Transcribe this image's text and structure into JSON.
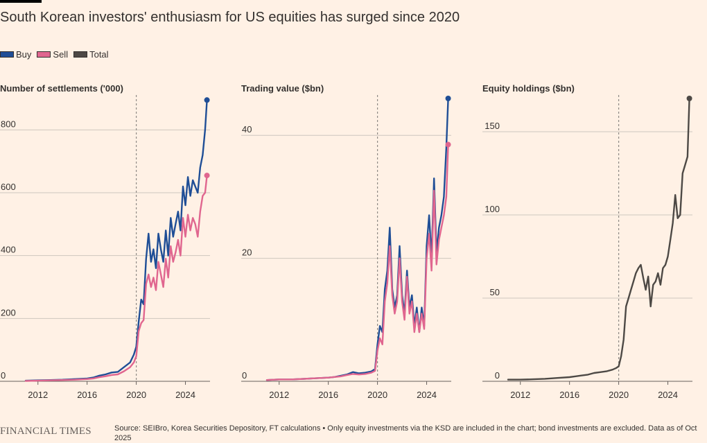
{
  "title": "South Korean investors' enthusiasm for US equities has surged since 2020",
  "colors": {
    "buy": "#1F4E96",
    "sell": "#E0668F",
    "total": "#4D4945",
    "grid": "#CEC6BE",
    "axis": "#66605C",
    "text": "#33302E"
  },
  "legend": [
    {
      "label": "Buy",
      "color": "#1F4E96"
    },
    {
      "label": "Sell",
      "color": "#E0668F"
    },
    {
      "label": "Total",
      "color": "#4D4945"
    }
  ],
  "chart_data": [
    {
      "type": "line",
      "title": "Number of settlements ('000)",
      "xlim": [
        2011.0,
        2026.0
      ],
      "ylim": [
        0,
        900
      ],
      "xticks": [
        2012,
        2016,
        2020,
        2024
      ],
      "yticks": [
        0,
        200,
        400,
        600,
        800
      ],
      "marker_x": 2020,
      "series": [
        {
          "name": "Buy",
          "color": "#1F4E96",
          "x": [
            2011.0,
            2012.0,
            2013.0,
            2014.0,
            2015.0,
            2016.0,
            2016.5,
            2017.0,
            2017.5,
            2018.0,
            2018.5,
            2019.0,
            2019.5,
            2019.8,
            2020.0,
            2020.2,
            2020.4,
            2020.6,
            2020.8,
            2021.0,
            2021.2,
            2021.4,
            2021.6,
            2021.8,
            2022.0,
            2022.2,
            2022.4,
            2022.6,
            2022.8,
            2023.0,
            2023.2,
            2023.4,
            2023.6,
            2023.8,
            2024.0,
            2024.2,
            2024.4,
            2024.6,
            2024.8,
            2025.0,
            2025.2,
            2025.4,
            2025.6,
            2025.75
          ],
          "values": [
            2,
            3,
            4,
            5,
            7,
            9,
            12,
            18,
            22,
            28,
            30,
            45,
            60,
            85,
            110,
            190,
            260,
            245,
            390,
            470,
            380,
            420,
            360,
            470,
            420,
            380,
            480,
            400,
            520,
            460,
            500,
            540,
            480,
            620,
            560,
            650,
            590,
            640,
            620,
            600,
            680,
            720,
            800,
            895
          ]
        },
        {
          "name": "Sell",
          "color": "#E0668F",
          "x": [
            2011.0,
            2012.0,
            2013.0,
            2014.0,
            2015.0,
            2016.0,
            2016.5,
            2017.0,
            2017.5,
            2018.0,
            2018.5,
            2019.0,
            2019.5,
            2019.8,
            2020.0,
            2020.2,
            2020.4,
            2020.6,
            2020.8,
            2021.0,
            2021.2,
            2021.4,
            2021.6,
            2021.8,
            2022.0,
            2022.2,
            2022.4,
            2022.6,
            2022.8,
            2023.0,
            2023.2,
            2023.4,
            2023.6,
            2023.8,
            2024.0,
            2024.2,
            2024.4,
            2024.6,
            2024.8,
            2025.0,
            2025.2,
            2025.4,
            2025.6,
            2025.75
          ],
          "values": [
            1,
            2,
            3,
            4,
            5,
            7,
            9,
            13,
            16,
            20,
            22,
            32,
            45,
            60,
            80,
            160,
            185,
            195,
            310,
            340,
            300,
            330,
            290,
            380,
            340,
            300,
            390,
            330,
            430,
            380,
            410,
            450,
            400,
            520,
            460,
            530,
            480,
            520,
            500,
            460,
            540,
            590,
            600,
            655
          ]
        }
      ]
    },
    {
      "type": "line",
      "title": "Trading value ($bn)",
      "xlim": [
        2011.0,
        2026.0
      ],
      "ylim": [
        0,
        46
      ],
      "xticks": [
        2012,
        2016,
        2020,
        2024
      ],
      "yticks": [
        0,
        20,
        40
      ],
      "marker_x": 2020,
      "series": [
        {
          "name": "Buy",
          "color": "#1F4E96",
          "x": [
            2011.0,
            2012.0,
            2013.0,
            2014.0,
            2015.0,
            2016.0,
            2016.5,
            2017.0,
            2017.5,
            2018.0,
            2018.5,
            2019.0,
            2019.5,
            2019.8,
            2020.0,
            2020.2,
            2020.4,
            2020.6,
            2020.8,
            2021.0,
            2021.2,
            2021.4,
            2021.6,
            2021.8,
            2022.0,
            2022.2,
            2022.4,
            2022.6,
            2022.8,
            2023.0,
            2023.2,
            2023.4,
            2023.6,
            2023.8,
            2024.0,
            2024.2,
            2024.4,
            2024.6,
            2024.8,
            2025.0,
            2025.2,
            2025.4,
            2025.6,
            2025.75
          ],
          "values": [
            0.2,
            0.3,
            0.3,
            0.4,
            0.5,
            0.6,
            0.7,
            0.9,
            1.1,
            1.5,
            1.3,
            1.4,
            1.6,
            2.0,
            6.0,
            9.0,
            8.0,
            15.0,
            18.0,
            25.0,
            15.0,
            12.0,
            14.0,
            22.0,
            14.0,
            11.0,
            18.0,
            12.0,
            14.0,
            9.0,
            12.0,
            8.0,
            12.0,
            9.0,
            22.0,
            27.0,
            20.0,
            33.0,
            21.0,
            25.0,
            27.0,
            30.0,
            38.0,
            46.0
          ]
        },
        {
          "name": "Sell",
          "color": "#E0668F",
          "x": [
            2011.0,
            2012.0,
            2013.0,
            2014.0,
            2015.0,
            2016.0,
            2016.5,
            2017.0,
            2017.5,
            2018.0,
            2018.5,
            2019.0,
            2019.5,
            2019.8,
            2020.0,
            2020.2,
            2020.4,
            2020.6,
            2020.8,
            2021.0,
            2021.2,
            2021.4,
            2021.6,
            2021.8,
            2022.0,
            2022.2,
            2022.4,
            2022.6,
            2022.8,
            2023.0,
            2023.2,
            2023.4,
            2023.6,
            2023.8,
            2024.0,
            2024.2,
            2024.4,
            2024.6,
            2024.8,
            2025.0,
            2025.2,
            2025.4,
            2025.6,
            2025.75
          ],
          "values": [
            0.2,
            0.3,
            0.3,
            0.4,
            0.5,
            0.6,
            0.7,
            0.8,
            1.0,
            1.2,
            1.1,
            1.2,
            1.4,
            1.7,
            5.0,
            7.0,
            6.0,
            13.0,
            16.0,
            22.0,
            14.0,
            11.0,
            13.0,
            20.0,
            13.0,
            10.0,
            17.0,
            11.0,
            13.0,
            8.0,
            11.0,
            8.0,
            11.0,
            8.5,
            20.0,
            24.0,
            18.0,
            31.0,
            19.0,
            23.0,
            25.0,
            27.0,
            30.0,
            38.5
          ]
        }
      ]
    },
    {
      "type": "line",
      "title": "Equity holdings ($bn)",
      "xlim": [
        2011.0,
        2026.0
      ],
      "ylim": [
        0,
        170
      ],
      "xticks": [
        2012,
        2016,
        2020,
        2024
      ],
      "yticks": [
        0,
        50,
        100,
        150
      ],
      "marker_x": 2020,
      "series": [
        {
          "name": "Total",
          "color": "#4D4945",
          "x": [
            2011.0,
            2012.0,
            2013.0,
            2014.0,
            2015.0,
            2016.0,
            2016.5,
            2017.0,
            2017.5,
            2018.0,
            2018.5,
            2019.0,
            2019.5,
            2019.8,
            2020.0,
            2020.2,
            2020.4,
            2020.6,
            2020.8,
            2021.0,
            2021.2,
            2021.4,
            2021.6,
            2021.8,
            2022.0,
            2022.2,
            2022.4,
            2022.6,
            2022.8,
            2023.0,
            2023.2,
            2023.4,
            2023.6,
            2023.8,
            2024.0,
            2024.2,
            2024.4,
            2024.6,
            2024.8,
            2025.0,
            2025.2,
            2025.4,
            2025.6,
            2025.75
          ],
          "values": [
            1,
            1,
            1.2,
            1.5,
            2,
            2.5,
            3,
            3.5,
            4,
            5,
            5.5,
            6,
            7,
            8,
            9,
            15,
            25,
            45,
            50,
            55,
            60,
            65,
            68,
            70,
            62,
            55,
            63,
            45,
            58,
            60,
            65,
            58,
            68,
            70,
            75,
            85,
            95,
            112,
            98,
            100,
            125,
            130,
            135,
            170
          ]
        }
      ]
    }
  ],
  "footer": {
    "logo": "FINANCIAL TIMES",
    "source": "Source: SEIBro, Korea Securities Depository, FT calculations • Only equity investments via the KSD are included in the chart; bond investments are excluded. Data as of Oct 2025"
  }
}
